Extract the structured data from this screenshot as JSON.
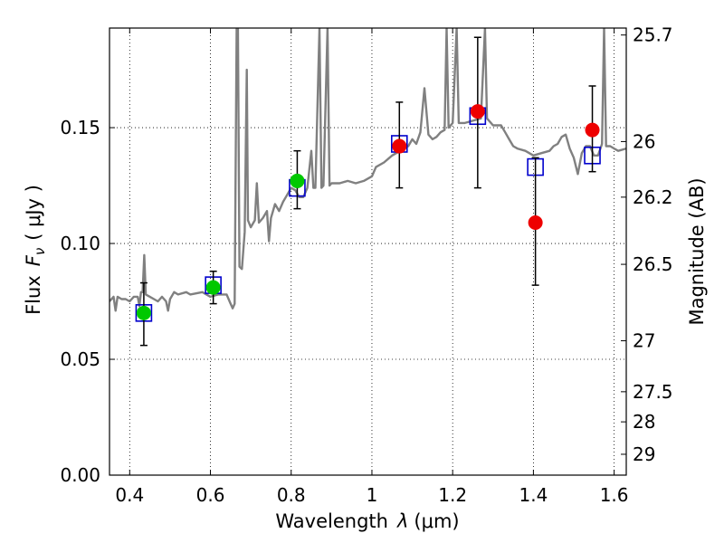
{
  "chart_data": {
    "type": "scatter",
    "xlabel": "Wavelength",
    "xlabel_symbol": "λ",
    "xlabel_unit": "(μm)",
    "ylabel": "Flux",
    "ylabel_symbol": "F",
    "ylabel_subscript": "ν",
    "ylabel_unit": "( μJy )",
    "y2label": "Magnitude (AB)",
    "xlim": [
      0.35,
      1.63
    ],
    "ylim": [
      0.0,
      0.193
    ],
    "grid": true,
    "x_ticks": [
      0.4,
      0.6,
      0.8,
      1.0,
      1.2,
      1.4,
      1.6
    ],
    "x_tick_labels": [
      "0.4",
      "0.6",
      "0.8",
      "1",
      "1.2",
      "1.4",
      "1.6"
    ],
    "y_ticks": [
      0.0,
      0.05,
      0.1,
      0.15
    ],
    "y_tick_labels": [
      "0.00",
      "0.05",
      "0.10",
      "0.15"
    ],
    "y2_ticks": [
      {
        "label": "25.7",
        "flux": 0.19
      },
      {
        "label": "26",
        "flux": 0.144
      },
      {
        "label": "26.2",
        "flux": 0.12
      },
      {
        "label": "26.5",
        "flux": 0.091
      },
      {
        "label": "27",
        "flux": 0.058
      },
      {
        "label": "27.5",
        "flux": 0.036
      },
      {
        "label": "28",
        "flux": 0.023
      },
      {
        "label": "29",
        "flux": 0.009
      }
    ],
    "series": [
      {
        "kind": "line",
        "color": "#808080",
        "points": [
          [
            0.35,
            0.075
          ],
          [
            0.36,
            0.077
          ],
          [
            0.365,
            0.071
          ],
          [
            0.37,
            0.077
          ],
          [
            0.38,
            0.076
          ],
          [
            0.39,
            0.076
          ],
          [
            0.4,
            0.075
          ],
          [
            0.41,
            0.077
          ],
          [
            0.42,
            0.077
          ],
          [
            0.424,
            0.073
          ],
          [
            0.428,
            0.079
          ],
          [
            0.432,
            0.079
          ],
          [
            0.436,
            0.095
          ],
          [
            0.44,
            0.078
          ],
          [
            0.45,
            0.077
          ],
          [
            0.46,
            0.076
          ],
          [
            0.47,
            0.075
          ],
          [
            0.48,
            0.077
          ],
          [
            0.49,
            0.075
          ],
          [
            0.495,
            0.071
          ],
          [
            0.5,
            0.076
          ],
          [
            0.51,
            0.079
          ],
          [
            0.52,
            0.078
          ],
          [
            0.54,
            0.079
          ],
          [
            0.55,
            0.078
          ],
          [
            0.58,
            0.079
          ],
          [
            0.6,
            0.077
          ],
          [
            0.62,
            0.078
          ],
          [
            0.64,
            0.078
          ],
          [
            0.65,
            0.074
          ],
          [
            0.655,
            0.072
          ],
          [
            0.66,
            0.074
          ],
          [
            0.665,
            0.193
          ],
          [
            0.668,
            0.193
          ],
          [
            0.672,
            0.09
          ],
          [
            0.678,
            0.089
          ],
          [
            0.685,
            0.105
          ],
          [
            0.69,
            0.175
          ],
          [
            0.693,
            0.11
          ],
          [
            0.7,
            0.107
          ],
          [
            0.71,
            0.11
          ],
          [
            0.715,
            0.126
          ],
          [
            0.72,
            0.109
          ],
          [
            0.73,
            0.111
          ],
          [
            0.74,
            0.114
          ],
          [
            0.745,
            0.101
          ],
          [
            0.75,
            0.111
          ],
          [
            0.76,
            0.117
          ],
          [
            0.77,
            0.114
          ],
          [
            0.78,
            0.118
          ],
          [
            0.79,
            0.121
          ],
          [
            0.8,
            0.124
          ],
          [
            0.81,
            0.123
          ],
          [
            0.82,
            0.12
          ],
          [
            0.83,
            0.12
          ],
          [
            0.84,
            0.124
          ],
          [
            0.85,
            0.14
          ],
          [
            0.855,
            0.124
          ],
          [
            0.86,
            0.124
          ],
          [
            0.87,
            0.193
          ],
          [
            0.875,
            0.124
          ],
          [
            0.88,
            0.125
          ],
          [
            0.89,
            0.193
          ],
          [
            0.895,
            0.125
          ],
          [
            0.9,
            0.126
          ],
          [
            0.92,
            0.126
          ],
          [
            0.94,
            0.127
          ],
          [
            0.96,
            0.126
          ],
          [
            0.98,
            0.127
          ],
          [
            1.0,
            0.129
          ],
          [
            1.01,
            0.133
          ],
          [
            1.03,
            0.135
          ],
          [
            1.05,
            0.138
          ],
          [
            1.07,
            0.14
          ],
          [
            1.09,
            0.142
          ],
          [
            1.1,
            0.145
          ],
          [
            1.11,
            0.143
          ],
          [
            1.12,
            0.148
          ],
          [
            1.13,
            0.167
          ],
          [
            1.14,
            0.147
          ],
          [
            1.15,
            0.145
          ],
          [
            1.16,
            0.146
          ],
          [
            1.17,
            0.148
          ],
          [
            1.18,
            0.149
          ],
          [
            1.185,
            0.193
          ],
          [
            1.19,
            0.15
          ],
          [
            1.2,
            0.152
          ],
          [
            1.21,
            0.193
          ],
          [
            1.215,
            0.152
          ],
          [
            1.23,
            0.152
          ],
          [
            1.25,
            0.153
          ],
          [
            1.27,
            0.154
          ],
          [
            1.28,
            0.193
          ],
          [
            1.285,
            0.154
          ],
          [
            1.3,
            0.151
          ],
          [
            1.32,
            0.151
          ],
          [
            1.33,
            0.148
          ],
          [
            1.34,
            0.145
          ],
          [
            1.35,
            0.142
          ],
          [
            1.36,
            0.141
          ],
          [
            1.38,
            0.14
          ],
          [
            1.4,
            0.138
          ],
          [
            1.42,
            0.139
          ],
          [
            1.44,
            0.14
          ],
          [
            1.45,
            0.142
          ],
          [
            1.46,
            0.143
          ],
          [
            1.47,
            0.146
          ],
          [
            1.48,
            0.147
          ],
          [
            1.49,
            0.141
          ],
          [
            1.5,
            0.137
          ],
          [
            1.51,
            0.13
          ],
          [
            1.52,
            0.139
          ],
          [
            1.53,
            0.142
          ],
          [
            1.54,
            0.142
          ],
          [
            1.55,
            0.138
          ],
          [
            1.56,
            0.138
          ],
          [
            1.57,
            0.143
          ],
          [
            1.575,
            0.193
          ],
          [
            1.58,
            0.142
          ],
          [
            1.59,
            0.142
          ],
          [
            1.6,
            0.141
          ],
          [
            1.61,
            0.14
          ],
          [
            1.63,
            0.141
          ]
        ]
      },
      {
        "kind": "model_boxes",
        "color": "#0000cc",
        "points": [
          [
            0.435,
            0.07
          ],
          [
            0.607,
            0.082
          ],
          [
            0.815,
            0.124
          ],
          [
            1.068,
            0.143
          ],
          [
            1.262,
            0.155
          ],
          [
            1.405,
            0.133
          ],
          [
            1.546,
            0.138
          ]
        ]
      },
      {
        "kind": "points_with_errorbars",
        "color": "#00c800",
        "points": [
          {
            "x": 0.435,
            "y": 0.07,
            "ylow": 0.056,
            "yhigh": 0.083
          },
          {
            "x": 0.607,
            "y": 0.081,
            "ylow": 0.074,
            "yhigh": 0.088
          },
          {
            "x": 0.815,
            "y": 0.127,
            "ylow": 0.115,
            "yhigh": 0.14
          }
        ]
      },
      {
        "kind": "points_with_errorbars",
        "color": "#ee0000",
        "points": [
          {
            "x": 1.068,
            "y": 0.142,
            "ylow": 0.124,
            "yhigh": 0.161
          },
          {
            "x": 1.262,
            "y": 0.157,
            "ylow": 0.124,
            "yhigh": 0.189
          },
          {
            "x": 1.405,
            "y": 0.109,
            "ylow": 0.082,
            "yhigh": 0.137
          },
          {
            "x": 1.546,
            "y": 0.149,
            "ylow": 0.131,
            "yhigh": 0.168
          }
        ]
      }
    ]
  }
}
